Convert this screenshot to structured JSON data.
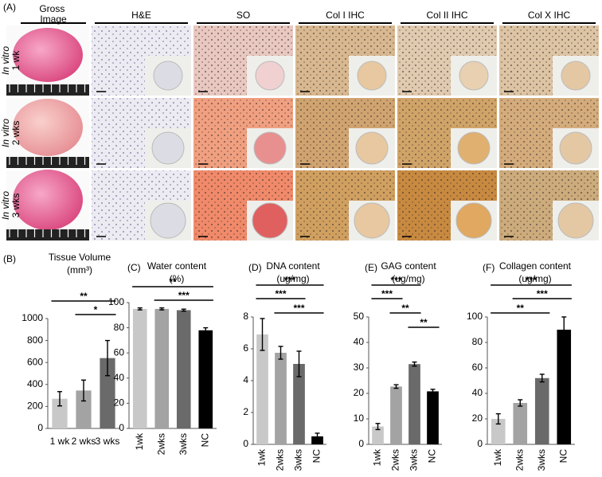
{
  "panel_A": {
    "label": "(A)",
    "columns": [
      "Gross Image",
      "H&E",
      "SO",
      "Col I IHC",
      "Col II IHC",
      "Col X IHC"
    ],
    "rows": [
      {
        "prefix": "In vitro",
        "time": "1 wk"
      },
      {
        "prefix": "In vitro",
        "time": "2 wks"
      },
      {
        "prefix": "In vitro",
        "time": "3 wks"
      }
    ]
  },
  "chart_data": [
    {
      "type": "bar",
      "panel": "(B)",
      "title": "Tissue Volume",
      "unit": "(mm³)",
      "categories": [
        "1 wk",
        "2 wks",
        "3 wks"
      ],
      "values": [
        270,
        345,
        640
      ],
      "errors": [
        65,
        95,
        160
      ],
      "colors": [
        "#c8c8c8",
        "#a3a3a3",
        "#6a6a6a"
      ],
      "ylim": [
        0,
        1000
      ],
      "yticks": [
        0,
        200,
        400,
        600,
        800,
        1000
      ],
      "annotations": [
        "**",
        "*"
      ]
    },
    {
      "type": "bar",
      "panel": "(C)",
      "title": "Water content",
      "unit": "(%)",
      "categories": [
        "1wk",
        "2wks",
        "3wks",
        "NC"
      ],
      "values": [
        95,
        95,
        94,
        78
      ],
      "errors": [
        0.8,
        0.8,
        0.8,
        2
      ],
      "colors": [
        "#c8c8c8",
        "#a3a3a3",
        "#6a6a6a",
        "#000000"
      ],
      "ylim": [
        0,
        100
      ],
      "yticks": [
        0,
        20,
        40,
        60,
        80,
        100
      ],
      "annotations": [
        "**",
        "***"
      ]
    },
    {
      "type": "bar",
      "panel": "(D)",
      "title": "DNA content",
      "unit": "(ug/mg)",
      "categories": [
        "1wk",
        "2wks",
        "3wks",
        "NC"
      ],
      "values": [
        6.9,
        5.75,
        5.05,
        0.5
      ],
      "errors": [
        1.0,
        0.4,
        0.8,
        0.2
      ],
      "colors": [
        "#c8c8c8",
        "#a3a3a3",
        "#6a6a6a",
        "#000000"
      ],
      "ylim": [
        0,
        8
      ],
      "yticks": [
        0,
        2,
        4,
        6,
        8
      ],
      "annotations": [
        "***",
        "***",
        "***"
      ]
    },
    {
      "type": "bar",
      "panel": "(E)",
      "title": "GAG content",
      "unit": "(ug/mg)",
      "categories": [
        "1wk",
        "2wks",
        "3wks",
        "NC"
      ],
      "values": [
        7,
        22.7,
        31.5,
        20.8
      ],
      "errors": [
        1.2,
        0.7,
        0.8,
        0.8
      ],
      "colors": [
        "#c8c8c8",
        "#a3a3a3",
        "#6a6a6a",
        "#000000"
      ],
      "ylim": [
        0,
        50
      ],
      "yticks": [
        0,
        10,
        20,
        30,
        40,
        50
      ],
      "annotations": [
        "***",
        "***",
        "**",
        "**"
      ]
    },
    {
      "type": "bar",
      "panel": "(F)",
      "title": "Collagen content",
      "unit": "(ug/mg)",
      "categories": [
        "1wk",
        "2wks",
        "3wks",
        "NC"
      ],
      "values": [
        20,
        32.5,
        52,
        90
      ],
      "errors": [
        4,
        2.5,
        3,
        10
      ],
      "colors": [
        "#c8c8c8",
        "#a3a3a3",
        "#6a6a6a",
        "#000000"
      ],
      "ylim": [
        0,
        100
      ],
      "yticks": [
        0,
        20,
        40,
        60,
        80,
        100
      ],
      "annotations": [
        "***",
        "***",
        "**"
      ]
    }
  ]
}
